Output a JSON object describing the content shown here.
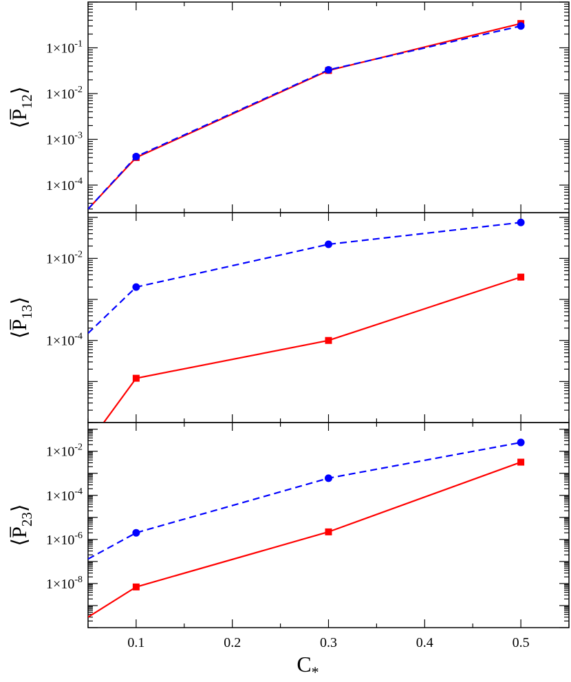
{
  "chart_data": [
    {
      "type": "line",
      "ylabel": "P",
      "ylabel_subscript": "12",
      "yscale": "log",
      "ylim": [
        2.5e-05,
        1.0
      ],
      "xlim": [
        0.05,
        0.55
      ],
      "ytick_labels": [
        {
          "value": 0.1,
          "mantissa": "1×10",
          "exp": "-1"
        },
        {
          "value": 0.01,
          "mantissa": "1×10",
          "exp": "-2"
        },
        {
          "value": 0.001,
          "mantissa": "1×10",
          "exp": "-3"
        },
        {
          "value": 0.0001,
          "mantissa": "1×10",
          "exp": "-4"
        }
      ],
      "series": [
        {
          "color": "#ff0000",
          "style": "solid",
          "marker": "square",
          "x": [
            0.05,
            0.1,
            0.3,
            0.5
          ],
          "y": [
            3e-05,
            0.0004,
            0.032,
            0.34
          ]
        },
        {
          "color": "#0000ff",
          "style": "dashed",
          "marker": "circle",
          "x": [
            0.05,
            0.1,
            0.3,
            0.5
          ],
          "y": [
            3e-05,
            0.00042,
            0.033,
            0.3
          ]
        }
      ]
    },
    {
      "type": "line",
      "ylabel": "P",
      "ylabel_subscript": "13",
      "yscale": "log",
      "ylim": [
        1e-06,
        0.13
      ],
      "xlim": [
        0.05,
        0.55
      ],
      "ytick_labels": [
        {
          "value": 0.01,
          "mantissa": "1×10",
          "exp": "-2"
        },
        {
          "value": 0.0001,
          "mantissa": "1×10",
          "exp": "-4"
        }
      ],
      "series": [
        {
          "color": "#ff0000",
          "style": "solid",
          "marker": "square",
          "x": [
            0.05,
            0.1,
            0.3,
            0.5
          ],
          "y": [
            3e-07,
            1.2e-05,
            0.0001,
            0.0035
          ]
        },
        {
          "color": "#0000ff",
          "style": "dashed",
          "marker": "circle",
          "x": [
            0.05,
            0.1,
            0.3,
            0.5
          ],
          "y": [
            0.00015,
            0.002,
            0.022,
            0.075
          ]
        }
      ]
    },
    {
      "type": "line",
      "ylabel": "P",
      "ylabel_subscript": "23",
      "yscale": "log",
      "ylim": [
        1e-10,
        0.2
      ],
      "xlim": [
        0.05,
        0.55
      ],
      "xlabel": "C",
      "xlabel_subscript": "*",
      "xticks": [
        0.1,
        0.2,
        0.3,
        0.4,
        0.5
      ],
      "xtick_labels": [
        "0.1",
        "0.2",
        "0.3",
        "0.4",
        "0.5"
      ],
      "ytick_labels": [
        {
          "value": 0.01,
          "mantissa": "1×10",
          "exp": "-2"
        },
        {
          "value": 0.0001,
          "mantissa": "1×10",
          "exp": "-4"
        },
        {
          "value": 1e-06,
          "mantissa": "1×10",
          "exp": "-6"
        },
        {
          "value": 1e-08,
          "mantissa": "1×10",
          "exp": "-8"
        }
      ],
      "series": [
        {
          "color": "#ff0000",
          "style": "solid",
          "marker": "square",
          "x": [
            0.05,
            0.1,
            0.3,
            0.5
          ],
          "y": [
            3e-10,
            7e-09,
            2.2e-06,
            0.0032
          ]
        },
        {
          "color": "#0000ff",
          "style": "dashed",
          "marker": "circle",
          "x": [
            0.05,
            0.1,
            0.3,
            0.5
          ],
          "y": [
            1.3e-07,
            2e-06,
            0.0006,
            0.025
          ]
        }
      ]
    }
  ]
}
